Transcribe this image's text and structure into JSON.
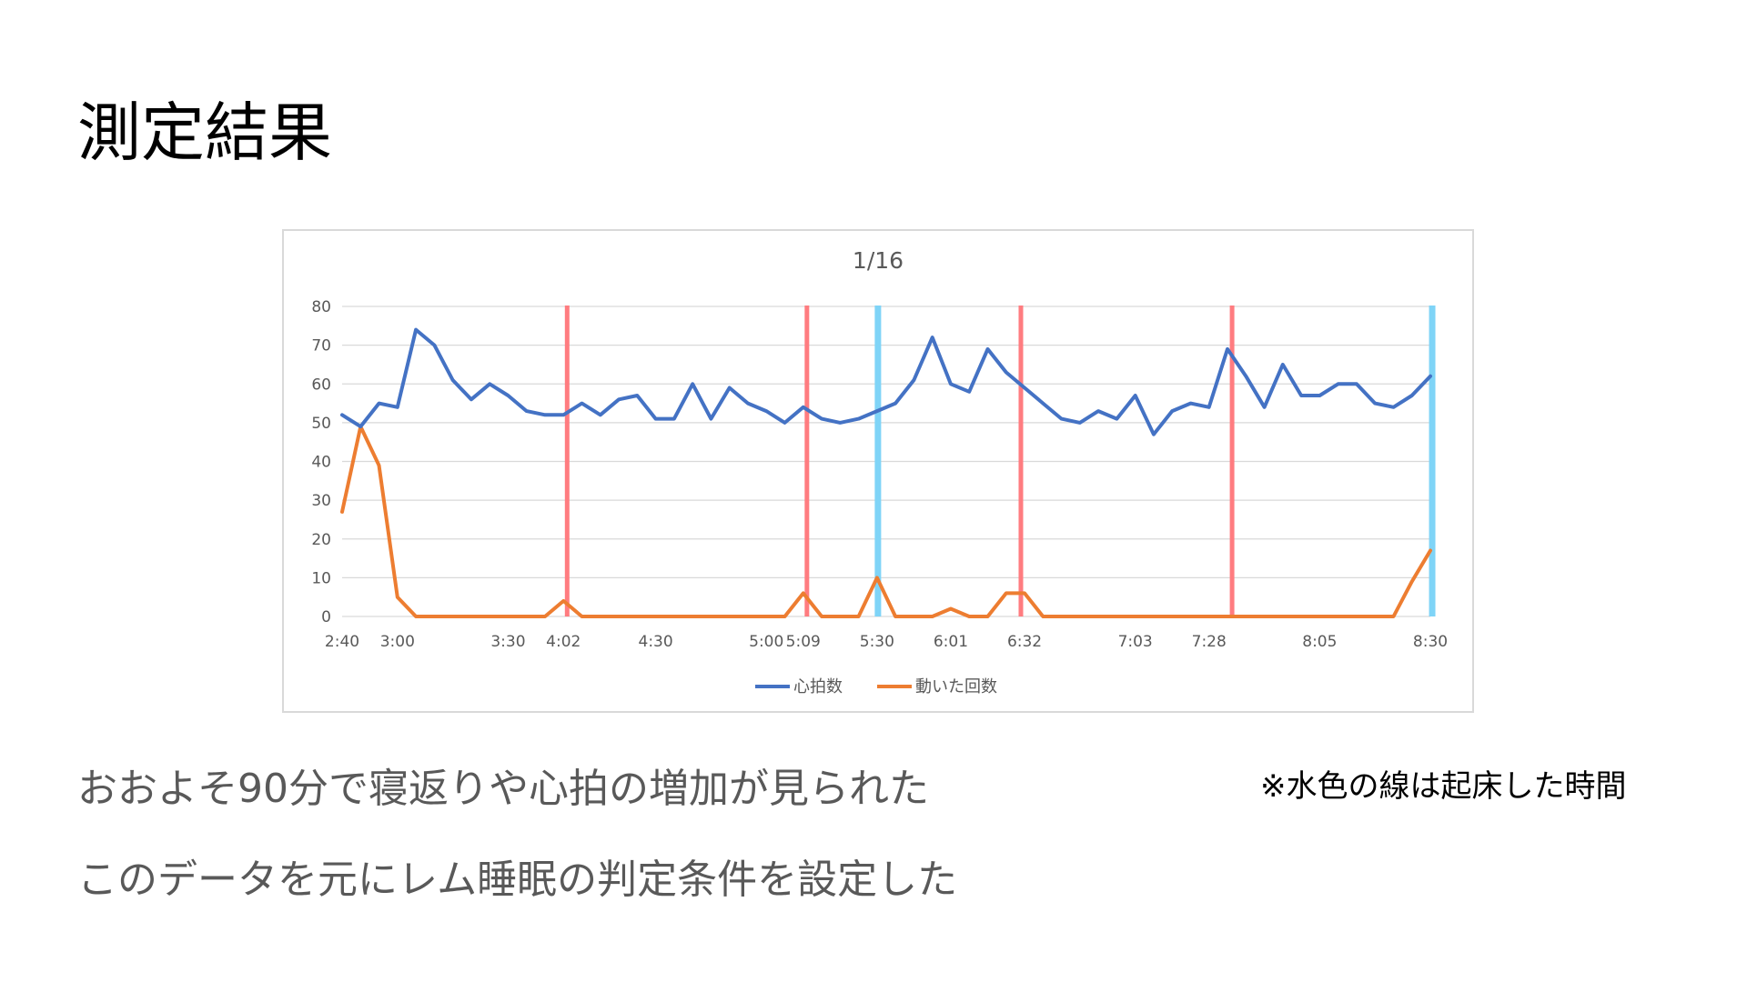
{
  "slide": {
    "title": "測定結果",
    "body_lines": [
      "おおよそ90分で寝返りや心拍の増加が見られた",
      "このデータを元にレム睡眠の判定条件を設定した"
    ],
    "note": "※水色の線は起床した時間"
  },
  "colors": {
    "heart_rate": "#4472c4",
    "movement": "#ed7d31",
    "red_marker": "#ff7c80",
    "blue_marker": "#7fd4f7",
    "grid": "#d9d9d9",
    "text": "#595959"
  },
  "chart_data": {
    "type": "line",
    "title": "1/16",
    "ylim": [
      0,
      80
    ],
    "y_ticks": [
      "0",
      "10",
      "20",
      "30",
      "40",
      "50",
      "60",
      "70",
      "80"
    ],
    "x_labels": [
      {
        "index": 0,
        "label": "2:40"
      },
      {
        "index": 3,
        "label": "3:00"
      },
      {
        "index": 9,
        "label": "3:30"
      },
      {
        "index": 12,
        "label": "4:02"
      },
      {
        "index": 17,
        "label": "4:30"
      },
      {
        "index": 23,
        "label": "5:00"
      },
      {
        "index": 25,
        "label": "5:09"
      },
      {
        "index": 29,
        "label": "5:30"
      },
      {
        "index": 33,
        "label": "6:01"
      },
      {
        "index": 37,
        "label": "6:32"
      },
      {
        "index": 43,
        "label": "7:03"
      },
      {
        "index": 47,
        "label": "7:28"
      },
      {
        "index": 53,
        "label": "8:05"
      },
      {
        "index": 59,
        "label": "8:30"
      }
    ],
    "grid": true,
    "legend_position": "bottom",
    "series": [
      {
        "name": "心拍数",
        "values": [
          52,
          49,
          55,
          54,
          74,
          70,
          61,
          56,
          60,
          57,
          53,
          52,
          52,
          55,
          52,
          56,
          57,
          51,
          51,
          60,
          51,
          59,
          55,
          53,
          50,
          54,
          51,
          50,
          51,
          53,
          55,
          61,
          72,
          60,
          58,
          69,
          63,
          59,
          55,
          51,
          50,
          53,
          51,
          57,
          47,
          53,
          55,
          54,
          69,
          62,
          54,
          65,
          57,
          57,
          60,
          60,
          55,
          54,
          57,
          62
        ]
      },
      {
        "name": "動いた回数",
        "values": [
          27,
          49,
          39,
          5,
          0,
          0,
          0,
          0,
          0,
          0,
          0,
          0,
          4,
          0,
          0,
          0,
          0,
          0,
          0,
          0,
          0,
          0,
          0,
          0,
          0,
          6,
          0,
          0,
          0,
          10,
          0,
          0,
          0,
          2,
          0,
          0,
          6,
          6,
          0,
          0,
          0,
          0,
          0,
          0,
          0,
          0,
          0,
          0,
          0,
          0,
          0,
          0,
          0,
          0,
          0,
          0,
          0,
          0,
          9,
          17
        ]
      }
    ],
    "vertical_markers": [
      {
        "index": 12.2,
        "color": "red"
      },
      {
        "index": 25.2,
        "color": "red"
      },
      {
        "index": 29.05,
        "color": "blue"
      },
      {
        "index": 36.8,
        "color": "red"
      },
      {
        "index": 48.25,
        "color": "red"
      },
      {
        "index": 59.1,
        "color": "blue"
      }
    ]
  }
}
